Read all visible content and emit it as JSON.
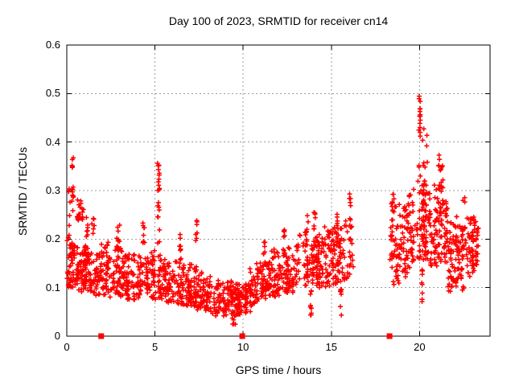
{
  "chart_data": {
    "type": "scatter",
    "title": "Day 100 of 2023, SRMTID for receiver cn14",
    "xlabel": "GPS time / hours",
    "ylabel": "SRMTID / TECUs",
    "xlim": [
      0,
      24
    ],
    "ylim": [
      0,
      0.6
    ],
    "xticks": [
      0,
      5,
      10,
      15,
      20
    ],
    "xtick_labels": [
      "0",
      "5",
      "10",
      "15",
      "20"
    ],
    "yticks": [
      0,
      0.1,
      0.2,
      0.3,
      0.4,
      0.5,
      0.6
    ],
    "ytick_labels": [
      "0",
      "0.1",
      "0.2",
      "0.3",
      "0.4",
      "0.5",
      "0.6"
    ],
    "grid": "dashed-gray-at-major-ticks",
    "legend": "none",
    "marker": "plus",
    "marker_color": "#ff0000",
    "grid_color": "#9c9c9c",
    "axis_color": "#000000",
    "background": "#ffffff",
    "n_points_approx": 2040,
    "data_gap_interval_hours": [
      16.2,
      18.35
    ],
    "max_point": [
      20.0,
      0.525
    ],
    "min_region": {
      "x_range": [
        8.2,
        10.4
      ],
      "y_typical": [
        0.04,
        0.12
      ]
    },
    "square_series": {
      "marker": "filled-square",
      "color": "#ff0000",
      "points": [
        [
          1.95,
          0
        ],
        [
          9.95,
          0
        ],
        [
          18.3,
          0
        ]
      ]
    },
    "seed": 1234,
    "band_segments": [
      {
        "x0": 0.03,
        "x1": 0.35,
        "n": 45,
        "lo0": 0.1,
        "hi0": 0.22,
        "lo1": 0.1,
        "hi1": 0.2
      },
      {
        "x0": 0.35,
        "x1": 0.9,
        "n": 55,
        "lo0": 0.1,
        "hi0": 0.2,
        "lo1": 0.09,
        "hi1": 0.19
      },
      {
        "x0": 0.9,
        "x1": 2.0,
        "n": 110,
        "lo0": 0.09,
        "hi0": 0.19,
        "lo1": 0.08,
        "hi1": 0.18
      },
      {
        "x0": 2.0,
        "x1": 3.2,
        "n": 105,
        "lo0": 0.08,
        "hi0": 0.2,
        "lo1": 0.08,
        "hi1": 0.18
      },
      {
        "x0": 3.2,
        "x1": 4.6,
        "n": 110,
        "lo0": 0.07,
        "hi0": 0.18,
        "lo1": 0.08,
        "hi1": 0.17
      },
      {
        "x0": 4.6,
        "x1": 5.6,
        "n": 85,
        "lo0": 0.08,
        "hi0": 0.19,
        "lo1": 0.07,
        "hi1": 0.17
      },
      {
        "x0": 5.6,
        "x1": 7.2,
        "n": 125,
        "lo0": 0.07,
        "hi0": 0.17,
        "lo1": 0.06,
        "hi1": 0.15
      },
      {
        "x0": 7.2,
        "x1": 8.2,
        "n": 85,
        "lo0": 0.055,
        "hi0": 0.14,
        "lo1": 0.05,
        "hi1": 0.125
      },
      {
        "x0": 8.2,
        "x1": 10.4,
        "n": 180,
        "lo0": 0.04,
        "hi0": 0.12,
        "lo1": 0.045,
        "hi1": 0.11
      },
      {
        "x0": 10.4,
        "x1": 11.6,
        "n": 105,
        "lo0": 0.06,
        "hi0": 0.15,
        "lo1": 0.08,
        "hi1": 0.16
      },
      {
        "x0": 11.6,
        "x1": 13.0,
        "n": 115,
        "lo0": 0.08,
        "hi0": 0.18,
        "lo1": 0.09,
        "hi1": 0.19
      },
      {
        "x0": 13.0,
        "x1": 14.6,
        "n": 120,
        "lo0": 0.1,
        "hi0": 0.21,
        "lo1": 0.1,
        "hi1": 0.22
      },
      {
        "x0": 14.6,
        "x1": 16.2,
        "n": 125,
        "lo0": 0.1,
        "hi0": 0.23,
        "lo1": 0.12,
        "hi1": 0.25
      },
      {
        "x0": 18.35,
        "x1": 19.3,
        "n": 95,
        "lo0": 0.1,
        "hi0": 0.3,
        "lo1": 0.12,
        "hi1": 0.27
      },
      {
        "x0": 19.3,
        "x1": 20.4,
        "n": 115,
        "lo0": 0.14,
        "hi0": 0.32,
        "lo1": 0.15,
        "hi1": 0.33
      },
      {
        "x0": 20.4,
        "x1": 21.6,
        "n": 115,
        "lo0": 0.14,
        "hi0": 0.32,
        "lo1": 0.15,
        "hi1": 0.3
      },
      {
        "x0": 21.6,
        "x1": 22.6,
        "n": 100,
        "lo0": 0.09,
        "hi0": 0.26,
        "lo1": 0.1,
        "hi1": 0.25
      },
      {
        "x0": 22.6,
        "x1": 23.3,
        "n": 75,
        "lo0": 0.11,
        "hi0": 0.27,
        "lo1": 0.14,
        "hi1": 0.24
      }
    ],
    "spike_strands": [
      {
        "x": 0.12,
        "xj": 0.15,
        "y0": 0.2,
        "y1": 0.305,
        "n": 6
      },
      {
        "x": 0.33,
        "xj": 0.1,
        "y0": 0.25,
        "y1": 0.38,
        "n": 14
      },
      {
        "x": 0.8,
        "xj": 0.45,
        "y0": 0.23,
        "y1": 0.285,
        "n": 18
      },
      {
        "x": 1.15,
        "xj": 0.12,
        "y0": 0.2,
        "y1": 0.25,
        "n": 7
      },
      {
        "x": 1.5,
        "xj": 0.2,
        "y0": 0.19,
        "y1": 0.245,
        "n": 6
      },
      {
        "x": 2.9,
        "xj": 0.2,
        "y0": 0.18,
        "y1": 0.235,
        "n": 8
      },
      {
        "x": 4.35,
        "xj": 0.15,
        "y0": 0.18,
        "y1": 0.245,
        "n": 8
      },
      {
        "x": 5.2,
        "xj": 0.12,
        "y0": 0.19,
        "y1": 0.378,
        "n": 22
      },
      {
        "x": 6.45,
        "xj": 0.12,
        "y0": 0.15,
        "y1": 0.225,
        "n": 8
      },
      {
        "x": 7.35,
        "xj": 0.08,
        "y0": 0.13,
        "y1": 0.24,
        "n": 9
      },
      {
        "x": 9.5,
        "xj": 0.25,
        "y0": 0.02,
        "y1": 0.045,
        "n": 6
      },
      {
        "x": 11.2,
        "xj": 0.1,
        "y0": 0.14,
        "y1": 0.2,
        "n": 7
      },
      {
        "x": 12.3,
        "xj": 0.12,
        "y0": 0.16,
        "y1": 0.235,
        "n": 8
      },
      {
        "x": 13.6,
        "xj": 0.18,
        "y0": 0.18,
        "y1": 0.27,
        "n": 10
      },
      {
        "x": 13.85,
        "xj": 0.1,
        "y0": 0.04,
        "y1": 0.095,
        "n": 9
      },
      {
        "x": 14.05,
        "xj": 0.12,
        "y0": 0.16,
        "y1": 0.28,
        "n": 10
      },
      {
        "x": 15.3,
        "xj": 0.12,
        "y0": 0.18,
        "y1": 0.26,
        "n": 8
      },
      {
        "x": 15.55,
        "xj": 0.12,
        "y0": 0.04,
        "y1": 0.1,
        "n": 8
      },
      {
        "x": 16.05,
        "xj": 0.1,
        "y0": 0.15,
        "y1": 0.295,
        "n": 12
      },
      {
        "x": 18.5,
        "xj": 0.12,
        "y0": 0.25,
        "y1": 0.3,
        "n": 6
      },
      {
        "x": 20.0,
        "xj": 0.1,
        "y0": 0.3,
        "y1": 0.525,
        "n": 18
      },
      {
        "x": 20.15,
        "xj": 0.06,
        "y0": 0.07,
        "y1": 0.15,
        "n": 8
      },
      {
        "x": 20.3,
        "xj": 0.3,
        "y0": 0.33,
        "y1": 0.435,
        "n": 8
      },
      {
        "x": 21.2,
        "xj": 0.3,
        "y0": 0.27,
        "y1": 0.385,
        "n": 16
      },
      {
        "x": 22.4,
        "xj": 0.08,
        "y0": 0.085,
        "y1": 0.14,
        "n": 8
      },
      {
        "x": 22.5,
        "xj": 0.15,
        "y0": 0.26,
        "y1": 0.29,
        "n": 3
      }
    ]
  }
}
